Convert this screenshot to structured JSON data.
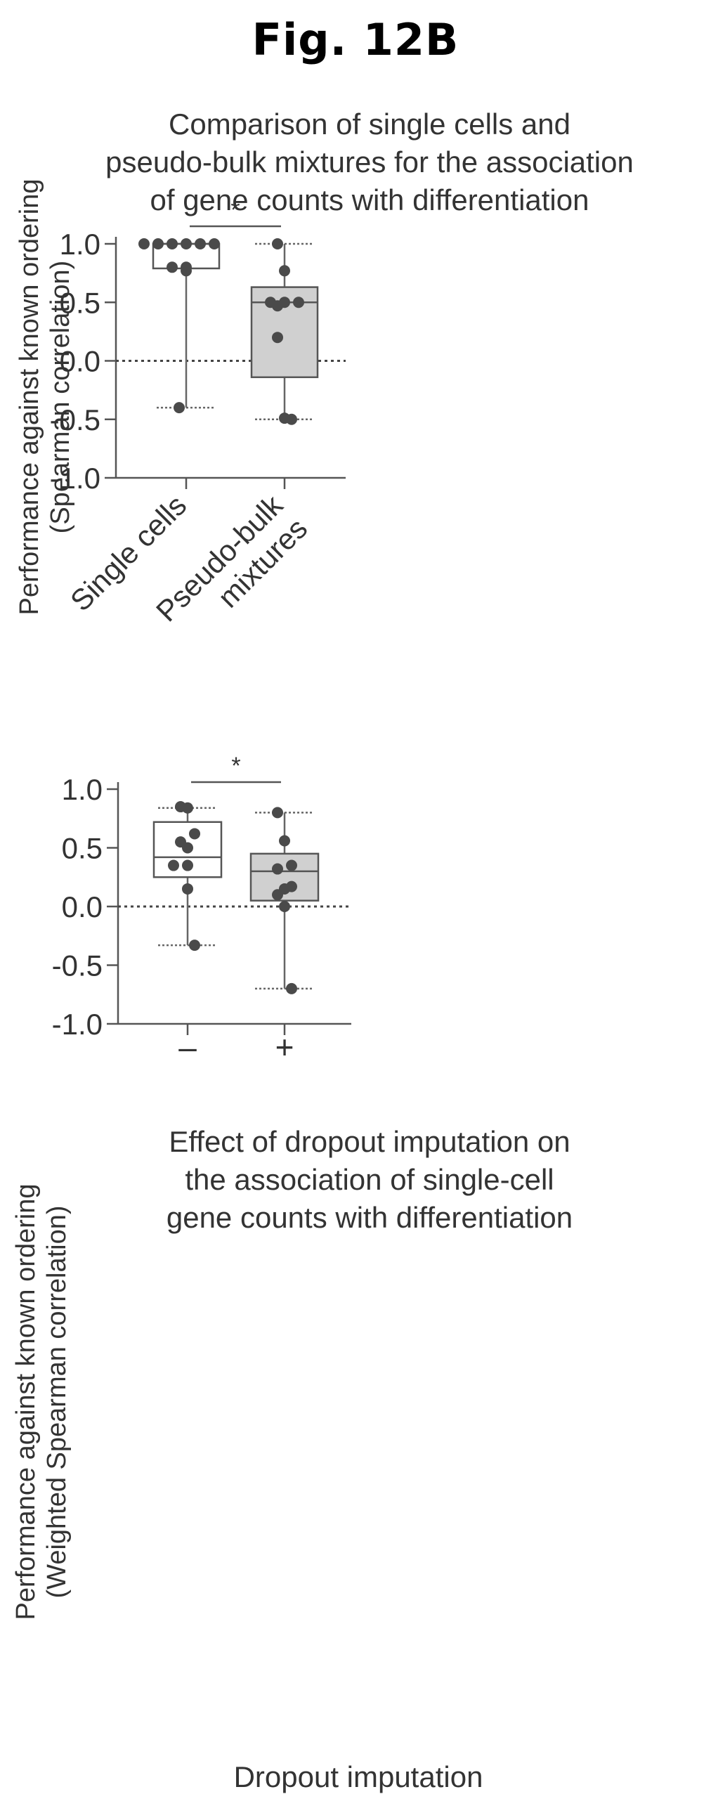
{
  "figure": {
    "label": "Fig. 12B"
  },
  "chart_data": [
    {
      "type": "box",
      "title": [
        "Comparison of single cells and",
        "pseudo-bulk mixtures for the association",
        "of gene counts with differentiation"
      ],
      "ylabel": [
        "Performance against known ordering",
        "(Spearman correlation)"
      ],
      "xlabel": "",
      "ylim": [
        -1.0,
        1.0
      ],
      "yticks": [
        1.0,
        0.5,
        0.0,
        -0.5,
        -1.0
      ],
      "ytick_labels": [
        "1.0",
        "0.5",
        "0.0",
        "-0.5",
        "-1.0"
      ],
      "reference_line": 0.0,
      "significance": "*",
      "categories": [
        "Single cells",
        "Pseudo-bulk mixtures"
      ],
      "category_label_lines": [
        [
          "Single cells"
        ],
        [
          "Pseudo-bulk",
          "mixtures"
        ]
      ],
      "series": [
        {
          "category": "Single cells",
          "fill": "#ffffff",
          "min": -0.4,
          "q1": 0.79,
          "median": 1.0,
          "q3": 1.0,
          "max": 1.0,
          "points": [
            1.0,
            1.0,
            1.0,
            1.0,
            1.0,
            1.0,
            0.8,
            0.77,
            0.8,
            -0.4
          ]
        },
        {
          "category": "Pseudo-bulk mixtures",
          "fill": "#d0d0d0",
          "min": -0.5,
          "q1": -0.14,
          "median": 0.5,
          "q3": 0.63,
          "max": 1.0,
          "points": [
            1.0,
            0.77,
            0.5,
            0.47,
            0.5,
            0.5,
            0.2,
            -0.49,
            -0.5
          ]
        }
      ]
    },
    {
      "type": "box",
      "title": [
        "Effect of dropout imputation on",
        "the association of single-cell",
        "gene counts with differentiation"
      ],
      "ylabel": [
        "Performance against known ordering",
        "(Weighted Spearman correlation)"
      ],
      "xlabel": "Dropout imputation",
      "ylim": [
        -1.0,
        1.0
      ],
      "yticks": [
        1.0,
        0.5,
        0.0,
        -0.5,
        -1.0
      ],
      "ytick_labels": [
        "1.0",
        "0.5",
        "0.0",
        "-0.5",
        "-1.0"
      ],
      "reference_line": 0.0,
      "significance": "*",
      "categories": [
        "–",
        "+"
      ],
      "category_label_lines": [
        [
          "–"
        ],
        [
          "+"
        ]
      ],
      "series": [
        {
          "category": "–",
          "fill": "#ffffff",
          "min": -0.33,
          "q1": 0.25,
          "median": 0.42,
          "q3": 0.72,
          "max": 0.84,
          "points": [
            0.85,
            0.84,
            0.62,
            0.55,
            0.5,
            0.35,
            0.35,
            0.15,
            -0.33
          ]
        },
        {
          "category": "+",
          "fill": "#d0d0d0",
          "min": -0.7,
          "q1": 0.05,
          "median": 0.3,
          "q3": 0.45,
          "max": 0.8,
          "points": [
            0.8,
            0.56,
            0.35,
            0.32,
            0.15,
            0.17,
            0.1,
            0.0,
            -0.7
          ]
        }
      ]
    }
  ]
}
